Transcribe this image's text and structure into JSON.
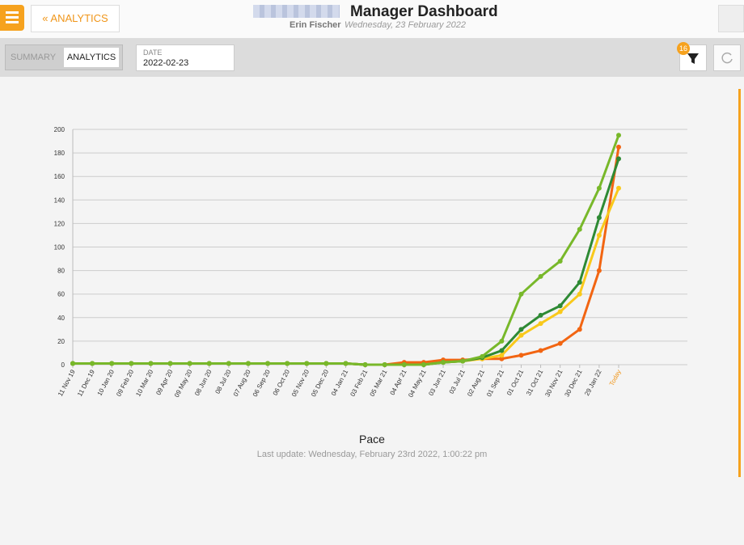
{
  "header": {
    "back_label": "ANALYTICS",
    "title": "Manager Dashboard",
    "user": "Erin Fischer",
    "date": "Wednesday, 23 February 2022"
  },
  "toolbar": {
    "tabs": [
      "SUMMARY",
      "ANALYTICS"
    ],
    "date_label": "DATE",
    "date_value": "2022-02-23",
    "filter_count": 16
  },
  "chart_data": {
    "type": "line",
    "title": "Pace",
    "subtitle": "Last update: Wednesday, February 23rd 2022, 1:00:22 pm",
    "categories": [
      "11 Nov 19",
      "11 Dec 19",
      "10 Jan 20",
      "09 Feb 20",
      "10 Mar 20",
      "09 Apr 20",
      "09 May 20",
      "08 Jun 20",
      "08 Jul 20",
      "07 Aug 20",
      "06 Sep 20",
      "06 Oct 20",
      "05 Nov 20",
      "05 Dec 20",
      "04 Jan 21",
      "03 Feb 21",
      "05 Mar 21",
      "04 Apr 21",
      "04 May 21",
      "03 Jun 21",
      "03 Jul 21",
      "02 Aug 21",
      "01 Sep 21",
      "01 Oct 21",
      "31 Oct 21",
      "30 Nov 21",
      "30 Dec 21",
      "29 Jan 22",
      "Today"
    ],
    "series": [
      {
        "color": "#f26512",
        "values": [
          1,
          1,
          1,
          1,
          1,
          1,
          1,
          1,
          1,
          1,
          1,
          1,
          1,
          1,
          1,
          0,
          0,
          2,
          2,
          4,
          4,
          5,
          5,
          8,
          12,
          18,
          30,
          80,
          185
        ]
      },
      {
        "color": "#f9c91b",
        "values": [
          1,
          1,
          1,
          1,
          1,
          1,
          1,
          1,
          1,
          1,
          1,
          1,
          1,
          1,
          1,
          0,
          0,
          0,
          0,
          2,
          3,
          5,
          8,
          25,
          35,
          45,
          60,
          110,
          150
        ]
      },
      {
        "color": "#2e8a34",
        "values": [
          1,
          1,
          1,
          1,
          1,
          1,
          1,
          1,
          1,
          1,
          1,
          1,
          1,
          1,
          1,
          0,
          0,
          0,
          0,
          2,
          3,
          6,
          12,
          30,
          42,
          50,
          70,
          125,
          175
        ]
      },
      {
        "color": "#78b82a",
        "values": [
          1,
          1,
          1,
          1,
          1,
          1,
          1,
          1,
          1,
          1,
          1,
          1,
          1,
          1,
          1,
          0,
          0,
          0,
          0,
          2,
          3,
          7,
          20,
          60,
          75,
          88,
          115,
          150,
          195
        ]
      }
    ],
    "ylim": [
      0,
      200
    ],
    "yticks": [
      0,
      20,
      40,
      60,
      80,
      100,
      120,
      140,
      160,
      180,
      200
    ],
    "grid": true
  }
}
